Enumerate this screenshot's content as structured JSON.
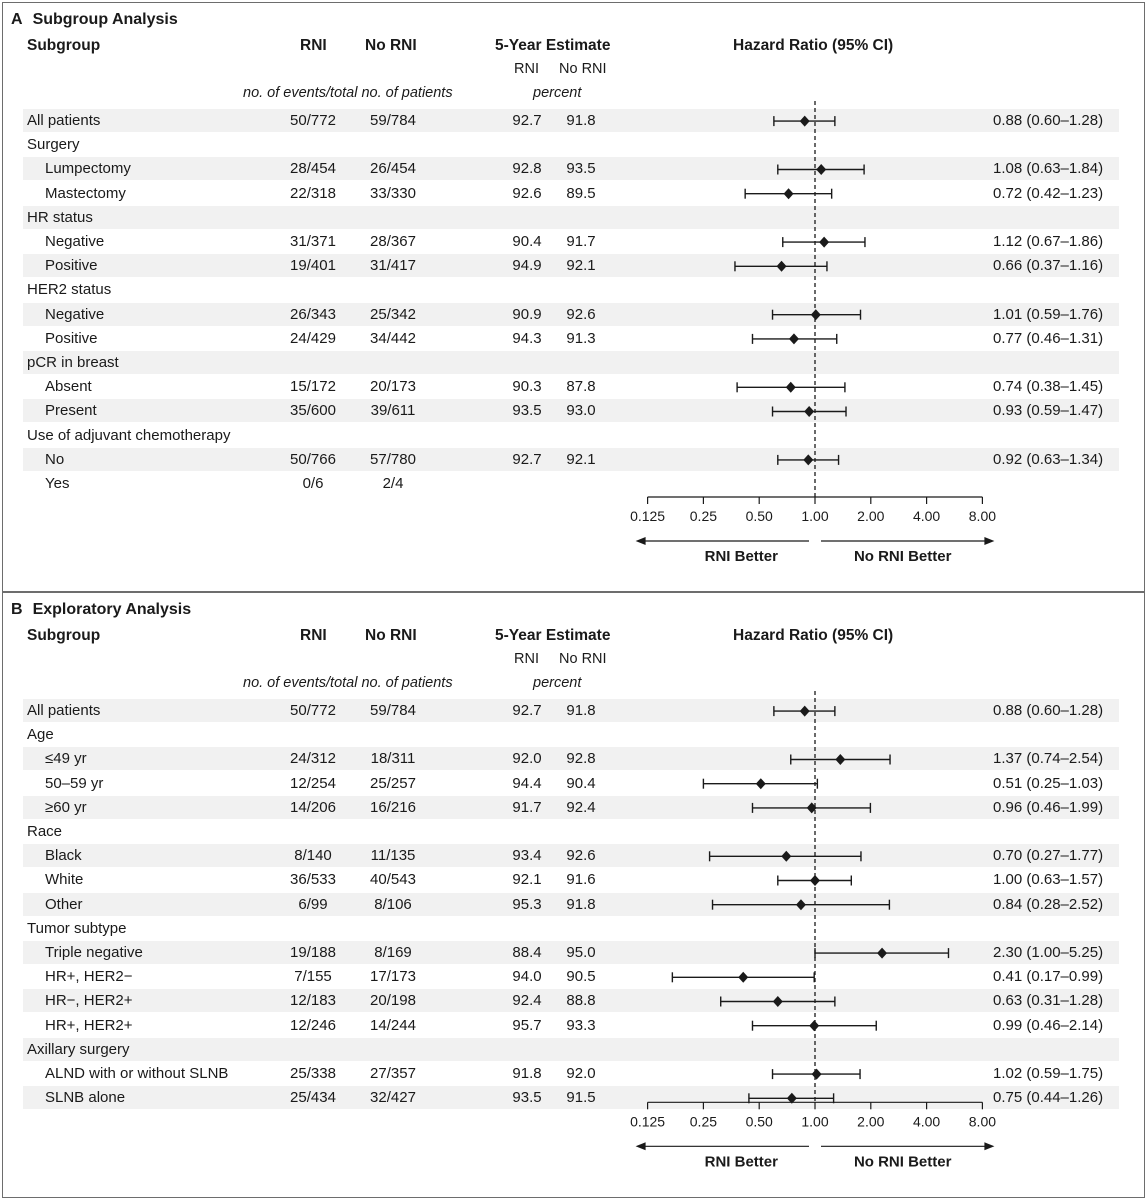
{
  "axis": {
    "ticks": [
      0.125,
      0.25,
      0.5,
      1,
      2,
      4,
      8
    ],
    "tick_labels": [
      "0.125",
      "0.25",
      "0.50",
      "1.00",
      "2.00",
      "4.00",
      "8.00"
    ],
    "scale": "log2",
    "reference_line": 1.0,
    "left_label": "RNI Better",
    "right_label": "No RNI Better"
  },
  "headers": {
    "subgroup": "Subgroup",
    "rni": "RNI",
    "no_rni": "No RNI",
    "estimate": "5-Year Estimate",
    "est_rni": "RNI",
    "est_no_rni": "No RNI",
    "hazard": "Hazard Ratio (95% CI)",
    "events_note": "no. of events/total no. of patients",
    "percent": "percent"
  },
  "panelA": {
    "letter": "A",
    "title": "Subgroup Analysis"
  },
  "panelB": {
    "letter": "B",
    "title": "Exploratory Analysis"
  },
  "colors": {
    "text": "#1a1a1a",
    "shade": "#f1f1f1",
    "border": "#6d6d6d"
  },
  "chart_data": [
    {
      "type": "forest",
      "title": "Subgroup Analysis",
      "xlabel": "Hazard Ratio (95% CI)",
      "xlim": [
        0.125,
        8
      ],
      "rows": [
        {
          "label": "All patients",
          "indent": false,
          "shade": true,
          "rni": "50/772",
          "no_rni": "59/784",
          "est_rni": "92.7",
          "est_no_rni": "91.8",
          "hr": 0.88,
          "lo": 0.6,
          "hi": 1.28,
          "hr_text": "0.88 (0.60–1.28)"
        },
        {
          "label": "Surgery",
          "indent": false,
          "shade": false
        },
        {
          "label": "Lumpectomy",
          "indent": true,
          "shade": true,
          "rni": "28/454",
          "no_rni": "26/454",
          "est_rni": "92.8",
          "est_no_rni": "93.5",
          "hr": 1.08,
          "lo": 0.63,
          "hi": 1.84,
          "hr_text": "1.08 (0.63–1.84)"
        },
        {
          "label": "Mastectomy",
          "indent": true,
          "shade": false,
          "rni": "22/318",
          "no_rni": "33/330",
          "est_rni": "92.6",
          "est_no_rni": "89.5",
          "hr": 0.72,
          "lo": 0.42,
          "hi": 1.23,
          "hr_text": "0.72 (0.42–1.23)"
        },
        {
          "label": "HR status",
          "indent": false,
          "shade": true
        },
        {
          "label": "Negative",
          "indent": true,
          "shade": false,
          "rni": "31/371",
          "no_rni": "28/367",
          "est_rni": "90.4",
          "est_no_rni": "91.7",
          "hr": 1.12,
          "lo": 0.67,
          "hi": 1.86,
          "hr_text": "1.12 (0.67–1.86)"
        },
        {
          "label": "Positive",
          "indent": true,
          "shade": true,
          "rni": "19/401",
          "no_rni": "31/417",
          "est_rni": "94.9",
          "est_no_rni": "92.1",
          "hr": 0.66,
          "lo": 0.37,
          "hi": 1.16,
          "hr_text": "0.66 (0.37–1.16)"
        },
        {
          "label": "HER2 status",
          "indent": false,
          "shade": false
        },
        {
          "label": "Negative",
          "indent": true,
          "shade": true,
          "rni": "26/343",
          "no_rni": "25/342",
          "est_rni": "90.9",
          "est_no_rni": "92.6",
          "hr": 1.01,
          "lo": 0.59,
          "hi": 1.76,
          "hr_text": "1.01 (0.59–1.76)"
        },
        {
          "label": "Positive",
          "indent": true,
          "shade": false,
          "rni": "24/429",
          "no_rni": "34/442",
          "est_rni": "94.3",
          "est_no_rni": "91.3",
          "hr": 0.77,
          "lo": 0.46,
          "hi": 1.31,
          "hr_text": "0.77 (0.46–1.31)"
        },
        {
          "label": "pCR in breast",
          "indent": false,
          "shade": true
        },
        {
          "label": "Absent",
          "indent": true,
          "shade": false,
          "rni": "15/172",
          "no_rni": "20/173",
          "est_rni": "90.3",
          "est_no_rni": "87.8",
          "hr": 0.74,
          "lo": 0.38,
          "hi": 1.45,
          "hr_text": "0.74 (0.38–1.45)"
        },
        {
          "label": "Present",
          "indent": true,
          "shade": true,
          "rni": "35/600",
          "no_rni": "39/611",
          "est_rni": "93.5",
          "est_no_rni": "93.0",
          "hr": 0.93,
          "lo": 0.59,
          "hi": 1.47,
          "hr_text": "0.93 (0.59–1.47)"
        },
        {
          "label": "Use of adjuvant chemotherapy",
          "indent": false,
          "shade": false
        },
        {
          "label": "No",
          "indent": true,
          "shade": true,
          "rni": "50/766",
          "no_rni": "57/780",
          "est_rni": "92.7",
          "est_no_rni": "92.1",
          "hr": 0.92,
          "lo": 0.63,
          "hi": 1.34,
          "hr_text": "0.92 (0.63–1.34)"
        },
        {
          "label": "Yes",
          "indent": true,
          "shade": false,
          "rni": "0/6",
          "no_rni": "2/4"
        }
      ]
    },
    {
      "type": "forest",
      "title": "Exploratory Analysis",
      "xlabel": "Hazard Ratio (95% CI)",
      "xlim": [
        0.125,
        8
      ],
      "rows": [
        {
          "label": "All patients",
          "indent": false,
          "shade": true,
          "rni": "50/772",
          "no_rni": "59/784",
          "est_rni": "92.7",
          "est_no_rni": "91.8",
          "hr": 0.88,
          "lo": 0.6,
          "hi": 1.28,
          "hr_text": "0.88 (0.60–1.28)"
        },
        {
          "label": "Age",
          "indent": false,
          "shade": false
        },
        {
          "label": "≤49 yr",
          "indent": true,
          "shade": true,
          "rni": "24/312",
          "no_rni": "18/311",
          "est_rni": "92.0",
          "est_no_rni": "92.8",
          "hr": 1.37,
          "lo": 0.74,
          "hi": 2.54,
          "hr_text": "1.37 (0.74–2.54)"
        },
        {
          "label": "50–59 yr",
          "indent": true,
          "shade": false,
          "rni": "12/254",
          "no_rni": "25/257",
          "est_rni": "94.4",
          "est_no_rni": "90.4",
          "hr": 0.51,
          "lo": 0.25,
          "hi": 1.03,
          "hr_text": "0.51 (0.25–1.03)"
        },
        {
          "label": "≥60 yr",
          "indent": true,
          "shade": true,
          "rni": "14/206",
          "no_rni": "16/216",
          "est_rni": "91.7",
          "est_no_rni": "92.4",
          "hr": 0.96,
          "lo": 0.46,
          "hi": 1.99,
          "hr_text": "0.96 (0.46–1.99)"
        },
        {
          "label": "Race",
          "indent": false,
          "shade": false
        },
        {
          "label": "Black",
          "indent": true,
          "shade": true,
          "rni": "8/140",
          "no_rni": "11/135",
          "est_rni": "93.4",
          "est_no_rni": "92.6",
          "hr": 0.7,
          "lo": 0.27,
          "hi": 1.77,
          "hr_text": "0.70 (0.27–1.77)"
        },
        {
          "label": "White",
          "indent": true,
          "shade": false,
          "rni": "36/533",
          "no_rni": "40/543",
          "est_rni": "92.1",
          "est_no_rni": "91.6",
          "hr": 1.0,
          "lo": 0.63,
          "hi": 1.57,
          "hr_text": "1.00 (0.63–1.57)"
        },
        {
          "label": "Other",
          "indent": true,
          "shade": true,
          "rni": "6/99",
          "no_rni": "8/106",
          "est_rni": "95.3",
          "est_no_rni": "91.8",
          "hr": 0.84,
          "lo": 0.28,
          "hi": 2.52,
          "hr_text": "0.84 (0.28–2.52)"
        },
        {
          "label": "Tumor subtype",
          "indent": false,
          "shade": false
        },
        {
          "label": "Triple negative",
          "indent": true,
          "shade": true,
          "rni": "19/188",
          "no_rni": "8/169",
          "est_rni": "88.4",
          "est_no_rni": "95.0",
          "hr": 2.3,
          "lo": 1.0,
          "hi": 5.25,
          "hr_text": "2.30 (1.00–5.25)"
        },
        {
          "label": "HR+, HER2−",
          "indent": true,
          "shade": false,
          "rni": "7/155",
          "no_rni": "17/173",
          "est_rni": "94.0",
          "est_no_rni": "90.5",
          "hr": 0.41,
          "lo": 0.17,
          "hi": 0.99,
          "hr_text": "0.41 (0.17–0.99)"
        },
        {
          "label": "HR−, HER2+",
          "indent": true,
          "shade": true,
          "rni": "12/183",
          "no_rni": "20/198",
          "est_rni": "92.4",
          "est_no_rni": "88.8",
          "hr": 0.63,
          "lo": 0.31,
          "hi": 1.28,
          "hr_text": "0.63 (0.31–1.28)"
        },
        {
          "label": "HR+, HER2+",
          "indent": true,
          "shade": false,
          "rni": "12/246",
          "no_rni": "14/244",
          "est_rni": "95.7",
          "est_no_rni": "93.3",
          "hr": 0.99,
          "lo": 0.46,
          "hi": 2.14,
          "hr_text": "0.99 (0.46–2.14)"
        },
        {
          "label": "Axillary surgery",
          "indent": false,
          "shade": true
        },
        {
          "label": "ALND with or without SLNB",
          "indent": true,
          "shade": false,
          "rni": "25/338",
          "no_rni": "27/357",
          "est_rni": "91.8",
          "est_no_rni": "92.0",
          "hr": 1.02,
          "lo": 0.59,
          "hi": 1.75,
          "hr_text": "1.02 (0.59–1.75)"
        },
        {
          "label": "SLNB alone",
          "indent": true,
          "shade": true,
          "rni": "25/434",
          "no_rni": "32/427",
          "est_rni": "93.5",
          "est_no_rni": "91.5",
          "hr": 0.75,
          "lo": 0.44,
          "hi": 1.26,
          "hr_text": "0.75 (0.44–1.26)"
        }
      ]
    }
  ]
}
